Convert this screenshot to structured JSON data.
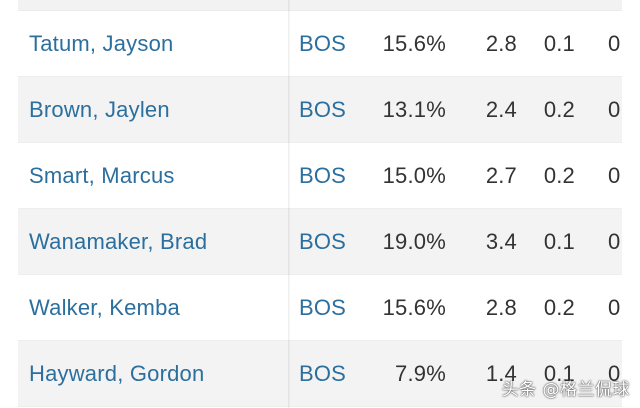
{
  "table": {
    "rows": [
      {
        "player": "Tatum, Jayson",
        "team": "BOS",
        "pct": "15.6%",
        "v1": "2.8",
        "v2": "0.1",
        "v3": "0"
      },
      {
        "player": "Brown, Jaylen",
        "team": "BOS",
        "pct": "13.1%",
        "v1": "2.4",
        "v2": "0.2",
        "v3": "0"
      },
      {
        "player": "Smart, Marcus",
        "team": "BOS",
        "pct": "15.0%",
        "v1": "2.7",
        "v2": "0.2",
        "v3": "0"
      },
      {
        "player": "Wanamaker, Brad",
        "team": "BOS",
        "pct": "19.0%",
        "v1": "3.4",
        "v2": "0.1",
        "v3": "0"
      },
      {
        "player": "Walker, Kemba",
        "team": "BOS",
        "pct": "15.6%",
        "v1": "2.8",
        "v2": "0.2",
        "v3": "0"
      },
      {
        "player": "Hayward, Gordon",
        "team": "BOS",
        "pct": "7.9%",
        "v1": "1.4",
        "v2": "0.1",
        "v3": "0"
      }
    ]
  },
  "watermark": "头条 @格兰侃球",
  "colors": {
    "link": "#2b6f9e",
    "text": "#333333",
    "row_alt": "#f3f3f3",
    "row_plain": "#ffffff"
  }
}
